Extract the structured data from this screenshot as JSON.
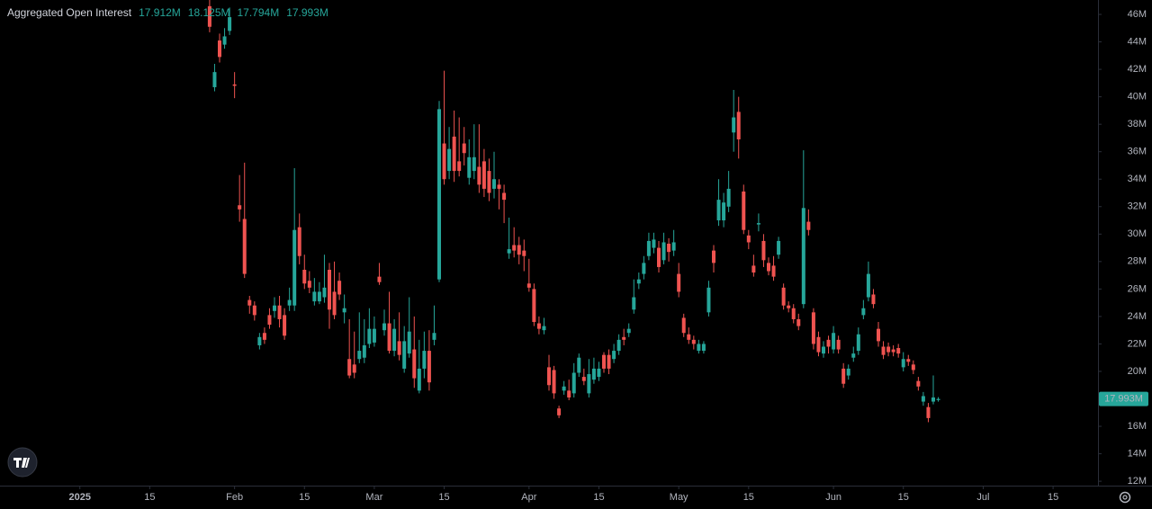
{
  "chart_data": {
    "type": "candlestick",
    "title": "Aggregated Open Interest",
    "legend_labels": [
      "17.912M",
      "18.125M",
      "17.794M",
      "17.993M"
    ],
    "price_label": "17.993M",
    "up_color": "#26a69a",
    "down_color": "#ef5350",
    "xlim": [
      "2024-12-16",
      "2025-07-24"
    ],
    "xticks": [
      {
        "value": "2025-01-01",
        "label": "2025"
      },
      {
        "value": "2025-01-15",
        "label": "15"
      },
      {
        "value": "2025-02-01",
        "label": "Feb"
      },
      {
        "value": "2025-02-15",
        "label": "15"
      },
      {
        "value": "2025-03-01",
        "label": "Mar"
      },
      {
        "value": "2025-03-15",
        "label": "15"
      },
      {
        "value": "2025-04-01",
        "label": "Apr"
      },
      {
        "value": "2025-04-15",
        "label": "15"
      },
      {
        "value": "2025-05-01",
        "label": "May"
      },
      {
        "value": "2025-05-15",
        "label": "15"
      },
      {
        "value": "2025-06-01",
        "label": "Jun"
      },
      {
        "value": "2025-06-15",
        "label": "15"
      },
      {
        "value": "2025-07-01",
        "label": "Jul"
      },
      {
        "value": "2025-07-15",
        "label": "15"
      }
    ],
    "ylim": [
      11.68,
      47.05
    ],
    "yticks": [
      {
        "value": 12,
        "label": "12M"
      },
      {
        "value": 14,
        "label": "14M"
      },
      {
        "value": 16,
        "label": "16M"
      },
      {
        "value": 18,
        "label": "18M"
      },
      {
        "value": 20,
        "label": "20M"
      },
      {
        "value": 22,
        "label": "22M"
      },
      {
        "value": 24,
        "label": "24M"
      },
      {
        "value": 26,
        "label": "26M"
      },
      {
        "value": 28,
        "label": "28M"
      },
      {
        "value": 30,
        "label": "30M"
      },
      {
        "value": 32,
        "label": "32M"
      },
      {
        "value": 34,
        "label": "34M"
      },
      {
        "value": 36,
        "label": "36M"
      },
      {
        "value": 38,
        "label": "38M"
      },
      {
        "value": 40,
        "label": "40M"
      },
      {
        "value": 42,
        "label": "42M"
      },
      {
        "value": 44,
        "label": "44M"
      },
      {
        "value": 46,
        "label": "46M"
      }
    ],
    "x": [
      "2025-01-27",
      "2025-01-28",
      "2025-01-29",
      "2025-01-30",
      "2025-01-31",
      "2025-02-01",
      "2025-02-02",
      "2025-02-03",
      "2025-02-04",
      "2025-02-05",
      "2025-02-06",
      "2025-02-07",
      "2025-02-08",
      "2025-02-09",
      "2025-02-10",
      "2025-02-11",
      "2025-02-12",
      "2025-02-13",
      "2025-02-14",
      "2025-02-15",
      "2025-02-16",
      "2025-02-17",
      "2025-02-18",
      "2025-02-19",
      "2025-02-20",
      "2025-02-21",
      "2025-02-22",
      "2025-02-23",
      "2025-02-24",
      "2025-02-25",
      "2025-02-26",
      "2025-02-27",
      "2025-02-28",
      "2025-03-01",
      "2025-03-02",
      "2025-03-03",
      "2025-03-04",
      "2025-03-05",
      "2025-03-06",
      "2025-03-07",
      "2025-03-08",
      "2025-03-09",
      "2025-03-10",
      "2025-03-11",
      "2025-03-12",
      "2025-03-13",
      "2025-03-14",
      "2025-03-15",
      "2025-03-16",
      "2025-03-17",
      "2025-03-18",
      "2025-03-19",
      "2025-03-20",
      "2025-03-21",
      "2025-03-22",
      "2025-03-23",
      "2025-03-24",
      "2025-03-25",
      "2025-03-26",
      "2025-03-27",
      "2025-03-28",
      "2025-03-29",
      "2025-03-30",
      "2025-03-31",
      "2025-04-01",
      "2025-04-02",
      "2025-04-03",
      "2025-04-04",
      "2025-04-05",
      "2025-04-06",
      "2025-04-07",
      "2025-04-08",
      "2025-04-09",
      "2025-04-10",
      "2025-04-11",
      "2025-04-12",
      "2025-04-13",
      "2025-04-14",
      "2025-04-15",
      "2025-04-16",
      "2025-04-17",
      "2025-04-18",
      "2025-04-19",
      "2025-04-20",
      "2025-04-21",
      "2025-04-22",
      "2025-04-23",
      "2025-04-24",
      "2025-04-25",
      "2025-04-26",
      "2025-04-27",
      "2025-04-28",
      "2025-04-29",
      "2025-04-30",
      "2025-05-01",
      "2025-05-02",
      "2025-05-03",
      "2025-05-04",
      "2025-05-05",
      "2025-05-06",
      "2025-05-07",
      "2025-05-08",
      "2025-05-09",
      "2025-05-10",
      "2025-05-11",
      "2025-05-12",
      "2025-05-13",
      "2025-05-14",
      "2025-05-15",
      "2025-05-16",
      "2025-05-17",
      "2025-05-18",
      "2025-05-19",
      "2025-05-20",
      "2025-05-21",
      "2025-05-22",
      "2025-05-23",
      "2025-05-24",
      "2025-05-25",
      "2025-05-26",
      "2025-05-27",
      "2025-05-28",
      "2025-05-29",
      "2025-05-30",
      "2025-05-31",
      "2025-06-01",
      "2025-06-02",
      "2025-06-03",
      "2025-06-04",
      "2025-06-05",
      "2025-06-06",
      "2025-06-07",
      "2025-06-08",
      "2025-06-09",
      "2025-06-10",
      "2025-06-11",
      "2025-06-12",
      "2025-06-13",
      "2025-06-14",
      "2025-06-15",
      "2025-06-16",
      "2025-06-17",
      "2025-06-18",
      "2025-06-19",
      "2025-06-20",
      "2025-06-21",
      "2025-06-22"
    ],
    "open": [
      46.6,
      40.7,
      44.1,
      43.8,
      44.8,
      40.9,
      32.1,
      31.1,
      25.2,
      24.8,
      21.9,
      22.8,
      24.1,
      24.4,
      24.8,
      24.1,
      24.8,
      24.8,
      30.5,
      27.4,
      26.6,
      25.1,
      25.1,
      25.4,
      27.4,
      25.8,
      26.6,
      24.3,
      20.9,
      20.5,
      20.9,
      21.0,
      22.0,
      22.1,
      26.9,
      23.0,
      23.5,
      21.5,
      22.2,
      20.2,
      21.3,
      21.6,
      18.6,
      20.2,
      21.5,
      22.3,
      26.7,
      36.6,
      34.6,
      37.1,
      35.3,
      36.6,
      34.1,
      34.6,
      34.9,
      35.3,
      34.6,
      33.3,
      33.6,
      33.0,
      28.6,
      29.2,
      29.2,
      28.8,
      26.4,
      26.0,
      23.5,
      23.0,
      20.3,
      20.1,
      17.3,
      18.6,
      18.6,
      18.4,
      19.9,
      19.6,
      18.4,
      19.4,
      19.6,
      21.2,
      21.2,
      20.9,
      21.5,
      22.5,
      22.8,
      24.5,
      26.4,
      27.1,
      28.4,
      29.0,
      29.0,
      28.1,
      29.3,
      28.8,
      27.1,
      23.9,
      22.7,
      22.3,
      21.5,
      21.5,
      24.3,
      28.8,
      31.0,
      31.0,
      32.0,
      37.4,
      38.9,
      33.1,
      29.9,
      27.7,
      30.7,
      29.5,
      27.9,
      27.7,
      28.5,
      26.1,
      24.8,
      24.6,
      23.8,
      24.9,
      30.9,
      24.3,
      22.5,
      21.3,
      22.3,
      21.6,
      22.3,
      20.2,
      19.7,
      21.0,
      21.5,
      24.1,
      25.4,
      25.6,
      23.1,
      21.8,
      21.8,
      21.6,
      21.7,
      20.3,
      20.9,
      20.5,
      19.3,
      17.8,
      17.4,
      17.8,
      17.912
    ],
    "high": [
      47.5,
      42.4,
      44.6,
      45.0,
      46.5,
      41.8,
      34.3,
      35.2,
      25.5,
      25.1,
      22.8,
      23.2,
      24.6,
      25.4,
      25.5,
      24.6,
      26.1,
      34.8,
      31.5,
      28.5,
      27.3,
      26.8,
      26.5,
      28.5,
      27.9,
      28.0,
      27.2,
      25.6,
      23.8,
      22.9,
      24.3,
      23.8,
      24.6,
      24.0,
      27.9,
      24.5,
      25.8,
      23.8,
      24.3,
      23.3,
      25.4,
      24.0,
      22.3,
      22.9,
      23.0,
      24.8,
      39.7,
      41.9,
      37.8,
      39.0,
      38.5,
      37.8,
      36.9,
      38.0,
      38.0,
      36.2,
      35.5,
      36.0,
      34.0,
      33.6,
      31.2,
      30.5,
      29.8,
      29.6,
      28.2,
      26.4,
      24.0,
      23.9,
      21.2,
      20.4,
      17.5,
      19.3,
      19.4,
      20.6,
      21.3,
      20.2,
      20.9,
      21.0,
      20.7,
      21.4,
      21.6,
      22.0,
      22.7,
      23.1,
      23.5,
      26.7,
      27.2,
      28.4,
      30.1,
      30.1,
      29.5,
      30.1,
      29.7,
      30.3,
      27.9,
      24.2,
      23.2,
      22.6,
      22.3,
      22.2,
      26.6,
      29.2,
      34.0,
      33.0,
      34.6,
      40.5,
      40.0,
      33.6,
      30.3,
      28.5,
      31.5,
      30.0,
      28.3,
      28.4,
      29.8,
      26.4,
      25.1,
      24.9,
      24.2,
      36.1,
      31.8,
      24.6,
      22.9,
      22.2,
      22.6,
      23.3,
      22.6,
      20.6,
      20.5,
      21.8,
      23.2,
      25.2,
      28.0,
      26.0,
      23.6,
      22.2,
      22.1,
      21.9,
      22.0,
      21.4,
      21.2,
      20.8,
      19.6,
      18.5,
      17.7,
      19.7,
      18.125
    ],
    "low": [
      44.7,
      40.4,
      42.5,
      43.5,
      44.5,
      39.9,
      30.9,
      26.8,
      24.2,
      23.7,
      21.6,
      22.0,
      23.1,
      23.9,
      23.2,
      22.3,
      24.4,
      24.4,
      27.8,
      26.0,
      25.7,
      24.8,
      24.9,
      25.0,
      23.1,
      23.8,
      25.2,
      23.5,
      19.5,
      19.5,
      20.6,
      20.6,
      21.7,
      21.8,
      26.3,
      22.6,
      21.3,
      21.1,
      20.8,
      19.9,
      21.0,
      18.8,
      18.4,
      19.5,
      18.6,
      21.9,
      26.5,
      33.6,
      34.0,
      33.8,
      34.2,
      35.0,
      33.6,
      34.0,
      33.0,
      32.7,
      32.4,
      32.6,
      31.8,
      30.8,
      28.2,
      28.3,
      27.8,
      27.3,
      25.8,
      23.3,
      22.7,
      22.7,
      18.6,
      18.0,
      16.6,
      18.3,
      17.9,
      18.1,
      19.6,
      19.0,
      18.1,
      19.1,
      19.3,
      19.9,
      19.8,
      20.6,
      21.2,
      21.9,
      22.5,
      24.2,
      26.0,
      26.7,
      28.1,
      28.6,
      27.2,
      27.8,
      28.0,
      28.4,
      25.4,
      22.5,
      22.0,
      21.6,
      21.3,
      21.3,
      24.0,
      27.2,
      30.6,
      30.5,
      31.6,
      36.0,
      35.5,
      30.0,
      28.9,
      26.9,
      30.2,
      27.6,
      27.0,
      26.6,
      28.2,
      24.5,
      24.3,
      23.5,
      23.0,
      24.6,
      29.9,
      21.6,
      21.1,
      21.0,
      21.3,
      21.3,
      21.3,
      18.8,
      19.4,
      20.7,
      21.2,
      23.8,
      25.1,
      24.6,
      21.8,
      20.9,
      21.1,
      21.1,
      21.0,
      20.0,
      20.4,
      19.8,
      18.6,
      17.5,
      16.3,
      17.6,
      17.794
    ],
    "close": [
      45.1,
      41.8,
      42.9,
      44.4,
      45.8,
      40.8,
      31.8,
      27.1,
      24.8,
      24.1,
      22.5,
      22.3,
      23.4,
      24.8,
      23.8,
      22.6,
      25.2,
      30.3,
      28.4,
      26.4,
      26.1,
      25.8,
      25.8,
      26.1,
      24.5,
      24.1,
      25.6,
      24.6,
      19.7,
      19.9,
      21.5,
      21.9,
      23.1,
      23.1,
      26.5,
      23.5,
      21.5,
      23.1,
      21.2,
      22.2,
      22.9,
      19.5,
      20.2,
      21.5,
      19.2,
      22.8,
      39.1,
      34.0,
      36.2,
      34.6,
      34.6,
      35.9,
      35.6,
      35.6,
      33.6,
      33.3,
      33.0,
      34.0,
      33.3,
      32.5,
      28.9,
      28.8,
      28.5,
      28.4,
      26.1,
      23.6,
      23.1,
      23.3,
      19.0,
      18.4,
      16.8,
      18.9,
      18.1,
      19.9,
      21.0,
      19.3,
      19.8,
      20.2,
      20.2,
      20.2,
      20.2,
      21.5,
      22.3,
      22.3,
      23.1,
      25.4,
      26.7,
      27.9,
      29.5,
      29.6,
      27.6,
      29.4,
      28.7,
      29.4,
      25.8,
      22.8,
      22.3,
      22.0,
      22.0,
      22.0,
      26.1,
      27.9,
      32.5,
      32.3,
      33.3,
      38.5,
      36.9,
      30.3,
      29.4,
      27.2,
      30.8,
      28.1,
      27.3,
      26.9,
      29.5,
      24.8,
      24.6,
      23.8,
      23.3,
      31.9,
      30.3,
      22.0,
      21.4,
      21.8,
      21.8,
      22.8,
      21.6,
      19.1,
      20.2,
      21.3,
      22.7,
      24.6,
      27.1,
      24.9,
      22.2,
      21.2,
      21.4,
      21.4,
      21.3,
      20.9,
      20.7,
      20.1,
      18.9,
      18.2,
      16.6,
      18.1,
      17.993
    ]
  }
}
